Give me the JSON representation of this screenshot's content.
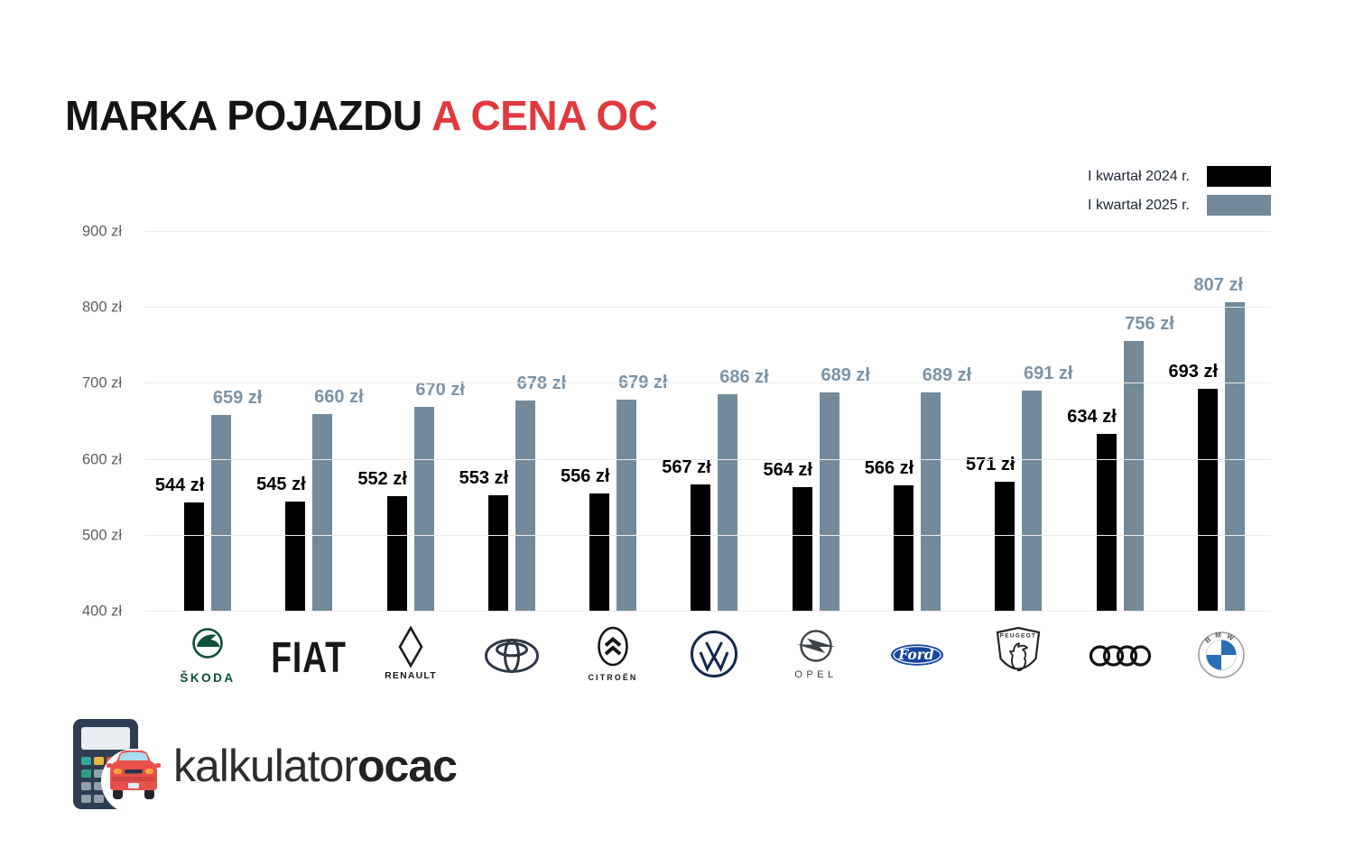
{
  "title": {
    "part_black": "MARKA POJAZDU",
    "part_red": "A CENA OC"
  },
  "legend": {
    "items": [
      {
        "label": "I kwartał 2024 r.",
        "color": "#000000"
      },
      {
        "label": "I kwartał 2025 r.",
        "color": "#728a99"
      }
    ]
  },
  "chart_data": {
    "type": "bar",
    "categories": [
      "Skoda",
      "Fiat",
      "Renault",
      "Toyota",
      "Citroën",
      "Volkswagen",
      "Opel",
      "Ford",
      "Peugeot",
      "Audi",
      "BMW"
    ],
    "series": [
      {
        "name": "I kwartał 2024 r.",
        "color": "#000000",
        "values": [
          544,
          545,
          552,
          553,
          556,
          567,
          564,
          566,
          571,
          634,
          693
        ]
      },
      {
        "name": "I kwartał 2025 r.",
        "color": "#728a99",
        "values": [
          659,
          660,
          670,
          678,
          679,
          686,
          689,
          689,
          691,
          756,
          807
        ]
      }
    ],
    "unit": "zł",
    "ylim": [
      400,
      900
    ],
    "yticks": [
      400,
      500,
      600,
      700,
      800,
      900
    ],
    "ytick_suffix": " zł",
    "grid": true,
    "legend_position": "top-right",
    "value_labels": true
  },
  "logos": {
    "skoda": "ŠKODA",
    "fiat": "FIAT",
    "renault": "RENAULT",
    "citroen": "CITROËN",
    "opel": "OPEL",
    "ford": "Ford",
    "peugeot": "PEUGEOT",
    "bmw": "BMW"
  },
  "footer": {
    "brand_regular": "kalkulator",
    "brand_bold": "ocac"
  },
  "theme": {
    "accent_red": "#e03a3e",
    "bar_2024": "#000000",
    "bar_2025": "#728a99",
    "value_label_2025": "#7b93a6",
    "grid_color": "#ececec",
    "tick_color": "#5c5d5f"
  }
}
